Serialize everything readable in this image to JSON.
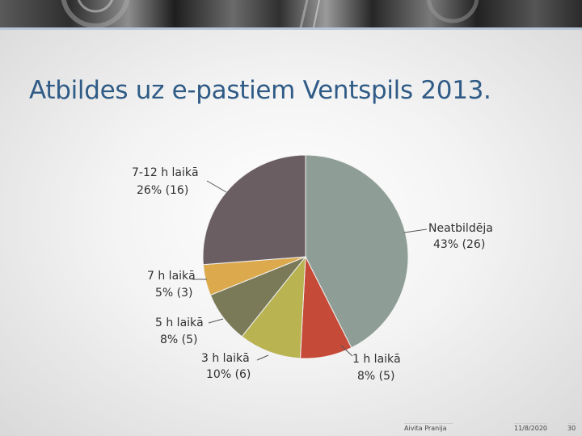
{
  "slide": {
    "title": "Atbildes uz e-pastiem Ventspils 2013.",
    "footer_author": "Aivita Pranija",
    "footer_date": "11/8/2020",
    "page_number": "30"
  },
  "chart_data": {
    "type": "pie",
    "title": "",
    "slices": [
      {
        "label": "Neatbildēja",
        "value": 26,
        "percent": "43%",
        "color": "#8e9e96"
      },
      {
        "label": "1 h laikā",
        "value": 5,
        "percent": "8%",
        "color": "#c64a38"
      },
      {
        "label": "3 h laikā",
        "value": 6,
        "percent": "10%",
        "color": "#b9b352"
      },
      {
        "label": "5 h laikā",
        "value": 5,
        "percent": "8%",
        "color": "#7b7a58"
      },
      {
        "label": "7 h laikā",
        "value": 3,
        "percent": "5%",
        "color": "#dcaa4c"
      },
      {
        "label": "7-12 h laikā",
        "value": 16,
        "percent": "26%",
        "color": "#6a5e62"
      }
    ],
    "data_labels": [
      {
        "line1": "Neatbildēja",
        "line2": "43% (26)"
      },
      {
        "line1": "1 h laikā",
        "line2": "8% (5)"
      },
      {
        "line1": "3 h laikā",
        "line2": "10% (6)"
      },
      {
        "line1": "5 h laikā",
        "line2": "8% (5)"
      },
      {
        "line1": "7 h laikā",
        "line2": "5% (3)"
      },
      {
        "line1": "7-12 h laikā",
        "line2": "26% (16)"
      }
    ]
  }
}
